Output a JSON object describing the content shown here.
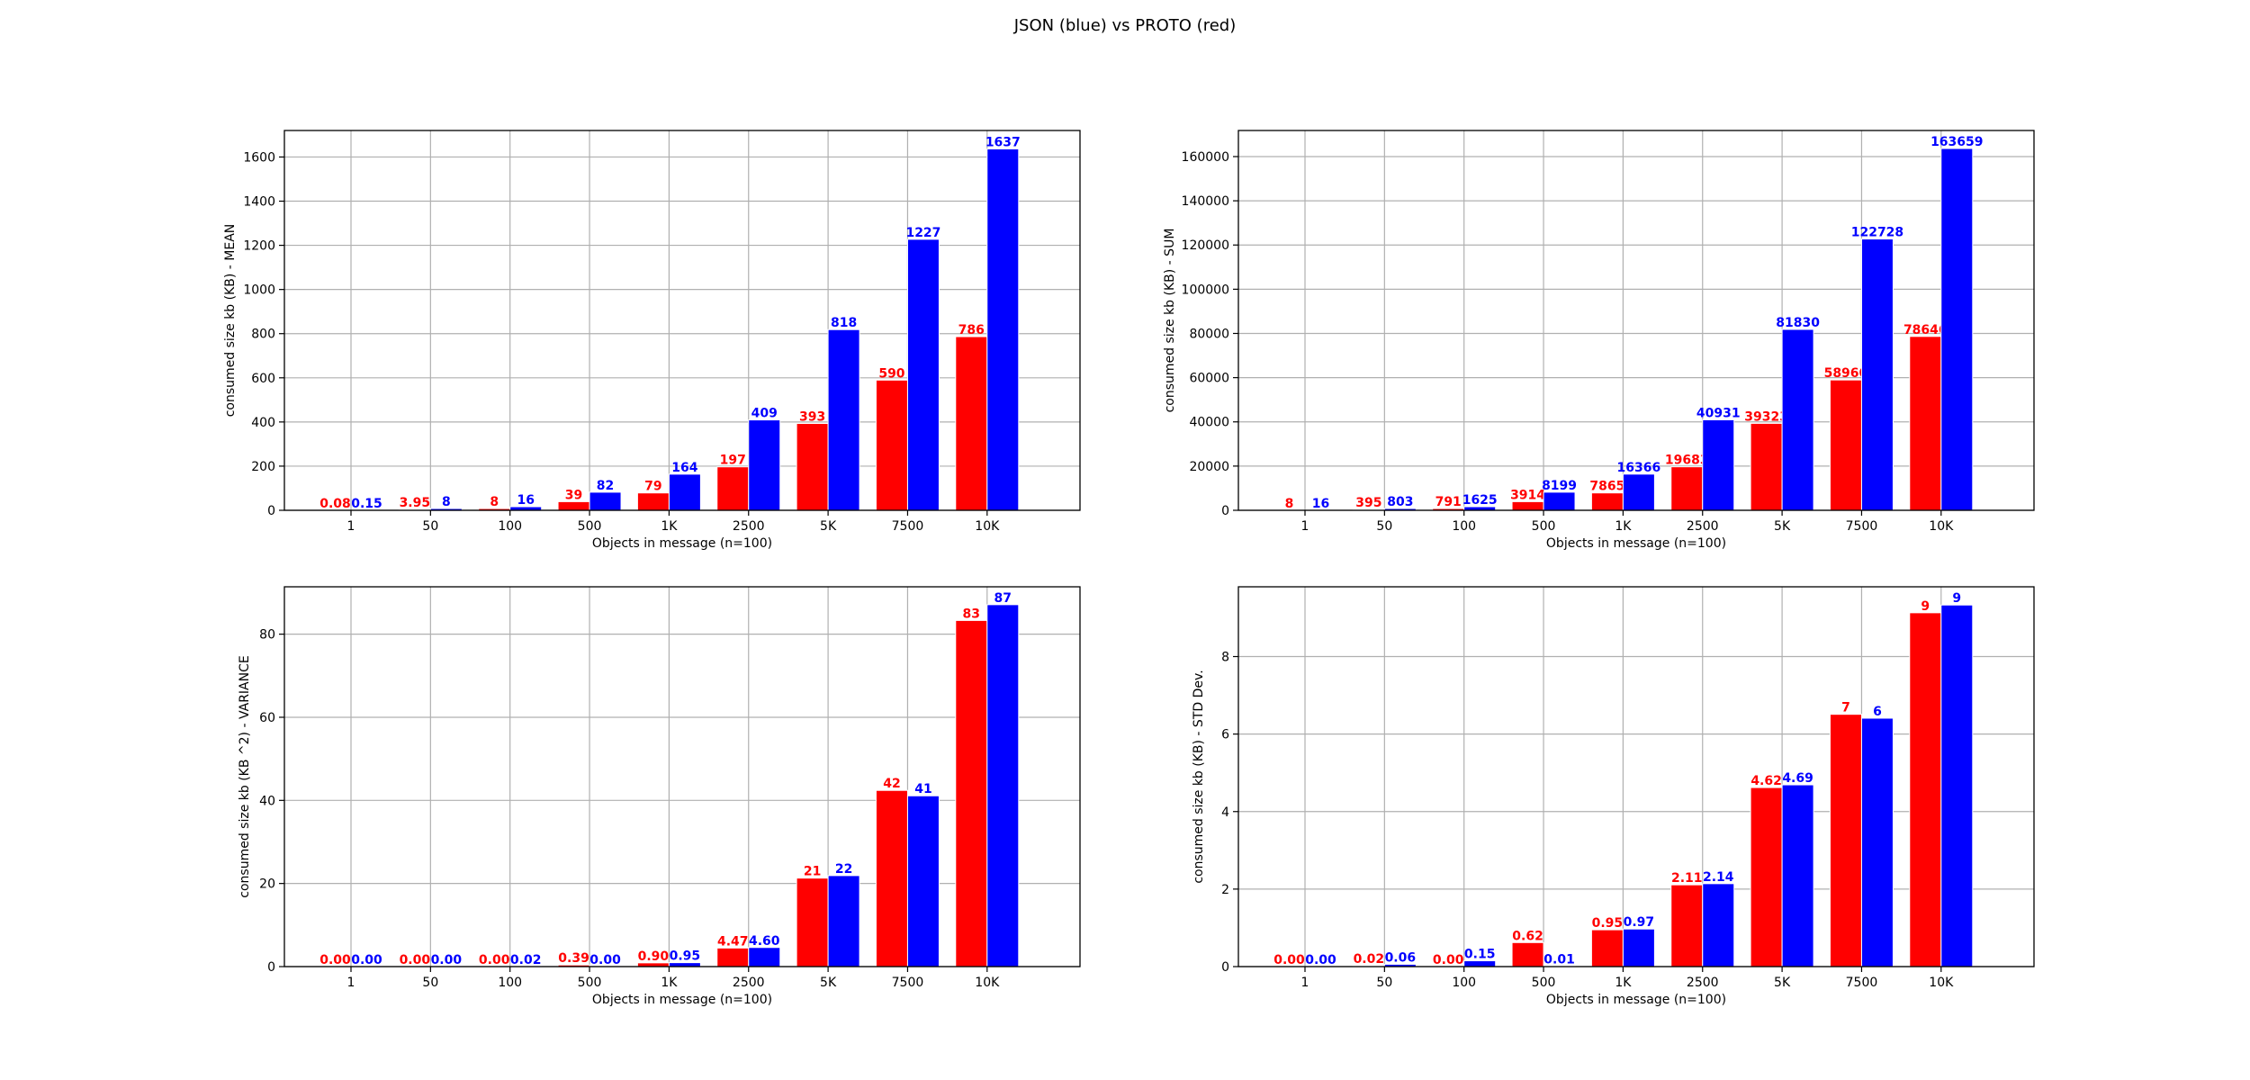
{
  "title": "JSON (blue) vs PROTO (red)",
  "colors": {
    "proto": "#ff0000",
    "json": "#0000ff",
    "grid": "#b0b0b0",
    "axis": "#000000"
  },
  "chart_data": [
    {
      "type": "bar",
      "categories": [
        "1",
        "50",
        "100",
        "500",
        "1K",
        "2500",
        "5K",
        "7500",
        "10K"
      ],
      "xlabel": "Objects in message (n=100)",
      "ylabel": "consumed size kb (KB) - MEAN",
      "ylim": [
        0,
        1720
      ],
      "yticks": [
        0,
        200,
        400,
        600,
        800,
        1000,
        1200,
        1400,
        1600
      ],
      "grid": true,
      "series": [
        {
          "key": "proto",
          "values": [
            0.08,
            3.95,
            7.87,
            39.14,
            78.66,
            196.83,
            393.23,
            589.6,
            786.46
          ],
          "labels": [
            "0.08",
            "3.95",
            "8",
            "39",
            "79",
            "197",
            "393",
            "590",
            "786"
          ]
        },
        {
          "key": "json",
          "values": [
            0.15,
            8.03,
            16.25,
            81.99,
            163.66,
            409.31,
            818.3,
            1227.28,
            1636.59
          ],
          "labels": [
            "0.15",
            "8",
            "16",
            "82",
            "164",
            "409",
            "818",
            "1227",
            "1637"
          ]
        }
      ]
    },
    {
      "type": "bar",
      "categories": [
        "1",
        "50",
        "100",
        "500",
        "1K",
        "2500",
        "5K",
        "7500",
        "10K"
      ],
      "xlabel": "Objects in message (n=100)",
      "ylabel": "consumed size kb (KB) - SUM",
      "ylim": [
        0,
        171800
      ],
      "yticks": [
        0,
        20000,
        40000,
        60000,
        80000,
        100000,
        120000,
        140000,
        160000
      ],
      "grid": true,
      "series": [
        {
          "key": "proto",
          "values": [
            8,
            395,
            791,
            3914,
            7865,
            19683,
            39323,
            58960,
            78646
          ],
          "labels": [
            "8",
            "395",
            "791",
            "3914",
            "7865",
            "19683",
            "39323",
            "58960",
            "78646"
          ]
        },
        {
          "key": "json",
          "values": [
            16,
            803,
            1625,
            8199,
            16366,
            40931,
            81830,
            122728,
            163659
          ],
          "labels": [
            "16",
            "803",
            "1625",
            "8199",
            "16366",
            "40931",
            "81830",
            "122728",
            "163659"
          ]
        }
      ]
    },
    {
      "type": "bar",
      "categories": [
        "1",
        "50",
        "100",
        "500",
        "1K",
        "2500",
        "5K",
        "7500",
        "10K"
      ],
      "xlabel": "Objects in message (n=100)",
      "ylabel": "consumed size kb (KB ^2) - VARIANCE",
      "ylim": [
        0,
        91.4
      ],
      "yticks": [
        0,
        20,
        40,
        60,
        80
      ],
      "grid": true,
      "series": [
        {
          "key": "proto",
          "values": [
            0.0,
            0.0,
            0.0,
            0.39,
            0.9,
            4.47,
            21.3,
            42.4,
            83.3
          ],
          "labels": [
            "0.00",
            "0.00",
            "0.00",
            "0.39",
            "0.90",
            "4.47",
            "21",
            "42",
            "83"
          ]
        },
        {
          "key": "json",
          "values": [
            0.0,
            0.0,
            0.02,
            0.0,
            0.95,
            4.6,
            21.9,
            41.1,
            87.1
          ],
          "labels": [
            "0.00",
            "0.00",
            "0.02",
            "0.00",
            "0.95",
            "4.60",
            "22",
            "41",
            "87"
          ]
        }
      ]
    },
    {
      "type": "bar",
      "categories": [
        "1",
        "50",
        "100",
        "500",
        "1K",
        "2500",
        "5K",
        "7500",
        "10K"
      ],
      "xlabel": "Objects in message (n=100)",
      "ylabel": "consumed size kb (KB) - STD Dev.",
      "ylim": [
        0,
        9.8
      ],
      "yticks": [
        0,
        2,
        4,
        6,
        8
      ],
      "grid": true,
      "series": [
        {
          "key": "proto",
          "values": [
            0.0,
            0.02,
            0.0,
            0.62,
            0.95,
            2.11,
            4.62,
            6.51,
            9.13
          ],
          "labels": [
            "0.00",
            "0.02",
            "0.00",
            "0.62",
            "0.95",
            "2.11",
            "4.62",
            "7",
            "9"
          ]
        },
        {
          "key": "json",
          "values": [
            0.0,
            0.06,
            0.15,
            0.01,
            0.97,
            2.14,
            4.69,
            6.41,
            9.33
          ],
          "labels": [
            "0.00",
            "0.06",
            "0.15",
            "0.01",
            "0.97",
            "2.14",
            "4.69",
            "6",
            "9"
          ]
        }
      ]
    }
  ]
}
